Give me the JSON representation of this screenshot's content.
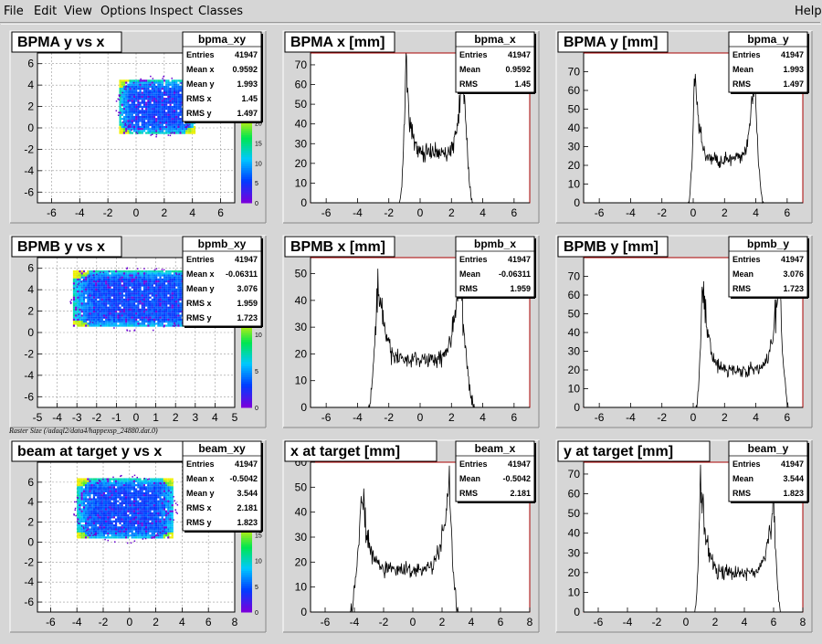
{
  "menu": {
    "items": [
      {
        "label": "File",
        "name": "menu-file"
      },
      {
        "label": "Edit",
        "name": "menu-edit"
      },
      {
        "label": "View",
        "name": "menu-view"
      },
      {
        "label": "Options",
        "name": "menu-options"
      },
      {
        "label": "Inspect",
        "name": "menu-inspect"
      },
      {
        "label": "Classes",
        "name": "menu-classes"
      }
    ],
    "help": "Help"
  },
  "caption": "Raster Size (/adaql2/data4/happexsp_24880.dat.0)",
  "colors": {
    "hist_line": "#000000",
    "frame": "#aa0000",
    "pad_bg": "#ffffff",
    "canvas_bg": "#d6d6d6"
  },
  "chart_data": [
    {
      "type": "heatmap",
      "title": "BPMA y vs x",
      "stats_name": "bpma_xy",
      "xlim": [
        -7,
        7
      ],
      "ylim": [
        -7,
        7
      ],
      "xticks": [
        -6,
        -4,
        -2,
        0,
        2,
        4,
        6
      ],
      "yticks": [
        -6,
        -4,
        -2,
        0,
        2,
        4,
        6
      ],
      "grid": true,
      "stats": [
        [
          "Entries",
          "41947"
        ],
        [
          "Mean x",
          "0.9592"
        ],
        [
          "Mean y",
          "1.993"
        ],
        [
          "RMS x",
          "1.45"
        ],
        [
          "RMS y",
          "1.497"
        ]
      ],
      "region": {
        "x": [
          -1.2,
          4.1
        ],
        "y": [
          -0.4,
          4.5
        ]
      },
      "zticks": [
        "0",
        "5",
        "10",
        "15",
        "20"
      ]
    },
    {
      "type": "histogram",
      "title": "BPMA x [mm]",
      "stats_name": "bpma_x",
      "xlim": [
        -7,
        7
      ],
      "ylim": [
        0,
        76
      ],
      "xticks": [
        -6,
        -4,
        -2,
        0,
        2,
        4,
        6
      ],
      "yticks": [
        0,
        10,
        20,
        30,
        40,
        50,
        60,
        70
      ],
      "stats": [
        [
          "Entries",
          "41947"
        ],
        [
          "Mean",
          "0.9592"
        ],
        [
          "RMS",
          "1.45"
        ]
      ],
      "peaks": [
        {
          "x": -0.9,
          "y": 70
        },
        {
          "x": 2.7,
          "y": 73
        }
      ],
      "edges": [
        -1.3,
        3.4
      ],
      "trough": 25
    },
    {
      "type": "histogram",
      "title": "BPMA y [mm]",
      "stats_name": "bpma_y",
      "xlim": [
        -7,
        7
      ],
      "ylim": [
        0,
        80
      ],
      "xticks": [
        -6,
        -4,
        -2,
        0,
        2,
        4,
        6
      ],
      "yticks": [
        0,
        10,
        20,
        30,
        40,
        50,
        60,
        70
      ],
      "stats": [
        [
          "Entries",
          "41947"
        ],
        [
          "Mean",
          "1.993"
        ],
        [
          "RMS",
          "1.497"
        ]
      ],
      "peaks": [
        {
          "x": 0.1,
          "y": 71
        },
        {
          "x": 3.9,
          "y": 74
        }
      ],
      "edges": [
        -0.3,
        4.5
      ],
      "trough": 23
    },
    {
      "type": "heatmap",
      "title": "BPMB y vs x",
      "stats_name": "bpmb_xy",
      "xlim": [
        -5,
        5
      ],
      "ylim": [
        -7,
        7
      ],
      "xticks": [
        -5,
        -4,
        -3,
        -2,
        -1,
        0,
        1,
        2,
        3,
        4,
        5
      ],
      "yticks": [
        -6,
        -4,
        -2,
        0,
        2,
        4,
        6
      ],
      "grid": true,
      "stats": [
        [
          "Entries",
          "41947"
        ],
        [
          "Mean x",
          "-0.06311"
        ],
        [
          "Mean y",
          "3.076"
        ],
        [
          "RMS x",
          "1.959"
        ],
        [
          "RMS y",
          "1.723"
        ]
      ],
      "region": {
        "x": [
          -3.2,
          3.3
        ],
        "y": [
          0.6,
          5.8
        ]
      },
      "zticks": [
        "0",
        "5",
        "10"
      ]
    },
    {
      "type": "histogram",
      "title": "BPMB x [mm]",
      "stats_name": "bpmb_x",
      "xlim": [
        -7,
        7
      ],
      "ylim": [
        0,
        56
      ],
      "xticks": [
        -6,
        -4,
        -2,
        0,
        2,
        4,
        6
      ],
      "yticks": [
        0,
        10,
        20,
        30,
        40,
        50
      ],
      "stats": [
        [
          "Entries",
          "41947"
        ],
        [
          "Mean",
          "-0.06311"
        ],
        [
          "RMS",
          "1.959"
        ]
      ],
      "peaks": [
        {
          "x": -2.7,
          "y": 49
        },
        {
          "x": 2.5,
          "y": 52
        }
      ],
      "edges": [
        -3.3,
        3.5
      ],
      "trough": 18
    },
    {
      "type": "histogram",
      "title": "BPMB y [mm]",
      "stats_name": "bpmb_y",
      "xlim": [
        -7,
        7
      ],
      "ylim": [
        0,
        80
      ],
      "xticks": [
        -6,
        -4,
        -2,
        0,
        2,
        4,
        6
      ],
      "yticks": [
        0,
        10,
        20,
        30,
        40,
        50,
        60,
        70
      ],
      "stats": [
        [
          "Entries",
          "41947"
        ],
        [
          "Mean",
          "3.076"
        ],
        [
          "RMS",
          "1.723"
        ]
      ],
      "peaks": [
        {
          "x": 0.6,
          "y": 71
        },
        {
          "x": 5.5,
          "y": 74
        }
      ],
      "edges": [
        0.2,
        6.1
      ],
      "trough": 20
    },
    {
      "type": "heatmap",
      "title": "beam at target y vs x",
      "stats_name": "beam_xy",
      "xlim": [
        -7,
        8
      ],
      "ylim": [
        -7,
        8
      ],
      "xticks": [
        -6,
        -4,
        -2,
        0,
        2,
        4,
        6,
        8
      ],
      "yticks": [
        -6,
        -4,
        -2,
        0,
        2,
        4,
        6
      ],
      "grid": true,
      "stats": [
        [
          "Entries",
          "41947"
        ],
        [
          "Mean x",
          "-0.5042"
        ],
        [
          "Mean y",
          "3.544"
        ],
        [
          "RMS x",
          "2.181"
        ],
        [
          "RMS y",
          "1.823"
        ]
      ],
      "region": {
        "x": [
          -4.0,
          3.3
        ],
        "y": [
          0.4,
          6.4
        ]
      },
      "zticks": [
        "0",
        "5",
        "10",
        "15"
      ]
    },
    {
      "type": "histogram",
      "title": "x at target [mm]",
      "stats_name": "beam_x",
      "xlim": [
        -7,
        8
      ],
      "ylim": [
        0,
        60
      ],
      "xticks": [
        -6,
        -4,
        -2,
        0,
        2,
        4,
        6,
        8
      ],
      "yticks": [
        0,
        10,
        20,
        30,
        40,
        50,
        60
      ],
      "stats": [
        [
          "Entries",
          "41947"
        ],
        [
          "Mean",
          "-0.5042"
        ],
        [
          "RMS",
          "2.181"
        ]
      ],
      "peaks": [
        {
          "x": -3.5,
          "y": 48
        },
        {
          "x": 2.5,
          "y": 52
        }
      ],
      "edges": [
        -4.3,
        3.1
      ],
      "trough": 17
    },
    {
      "type": "histogram",
      "title": "y at target [mm]",
      "stats_name": "beam_y",
      "xlim": [
        -7,
        8
      ],
      "ylim": [
        0,
        76
      ],
      "xticks": [
        -6,
        -4,
        -2,
        0,
        2,
        4,
        6,
        8
      ],
      "yticks": [
        0,
        10,
        20,
        30,
        40,
        50,
        60,
        70
      ],
      "stats": [
        [
          "Entries",
          "41947"
        ],
        [
          "Mean",
          "3.544"
        ],
        [
          "RMS",
          "1.823"
        ]
      ],
      "peaks": [
        {
          "x": 1.0,
          "y": 69
        },
        {
          "x": 6.0,
          "y": 58
        }
      ],
      "edges": [
        0.6,
        6.5
      ],
      "trough": 20
    }
  ]
}
